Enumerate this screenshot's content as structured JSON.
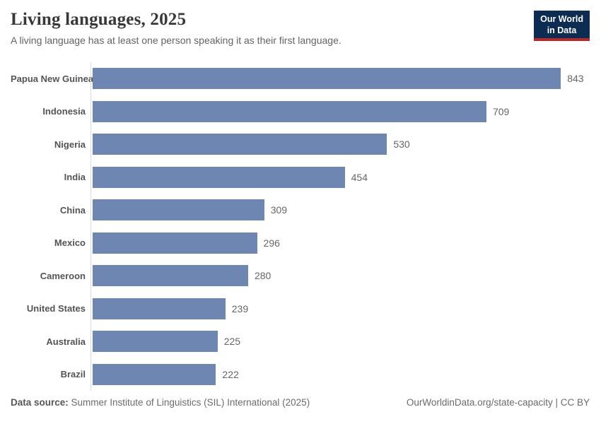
{
  "header": {
    "title": "Living languages, 2025",
    "subtitle": "A living language has at least one person speaking it as their first language.",
    "logo": {
      "line1": "Our World",
      "line2": "in Data"
    }
  },
  "chart_data": {
    "type": "bar",
    "orientation": "horizontal",
    "title": "Living languages, 2025",
    "categories": [
      "Papua New Guinea",
      "Indonesia",
      "Nigeria",
      "India",
      "China",
      "Mexico",
      "Cameroon",
      "United States",
      "Australia",
      "Brazil"
    ],
    "values": [
      843,
      709,
      530,
      454,
      309,
      296,
      280,
      239,
      225,
      222
    ],
    "xlim": [
      0,
      843
    ],
    "value_labels_shown": true,
    "grid": false,
    "bar_color": "#6e87b2"
  },
  "footer": {
    "datasource_label": "Data source:",
    "datasource_text": " Summer Institute of Linguistics (SIL) International (2025)",
    "link_text": "OurWorldinData.org/state-capacity | CC BY"
  },
  "colors": {
    "bar": "#6e87b2",
    "axis_line": "#dadada",
    "title_text": "#383838",
    "subtitle_text": "#636363",
    "logo_bg": "#0d2c54",
    "logo_stripe": "#b5292b"
  }
}
